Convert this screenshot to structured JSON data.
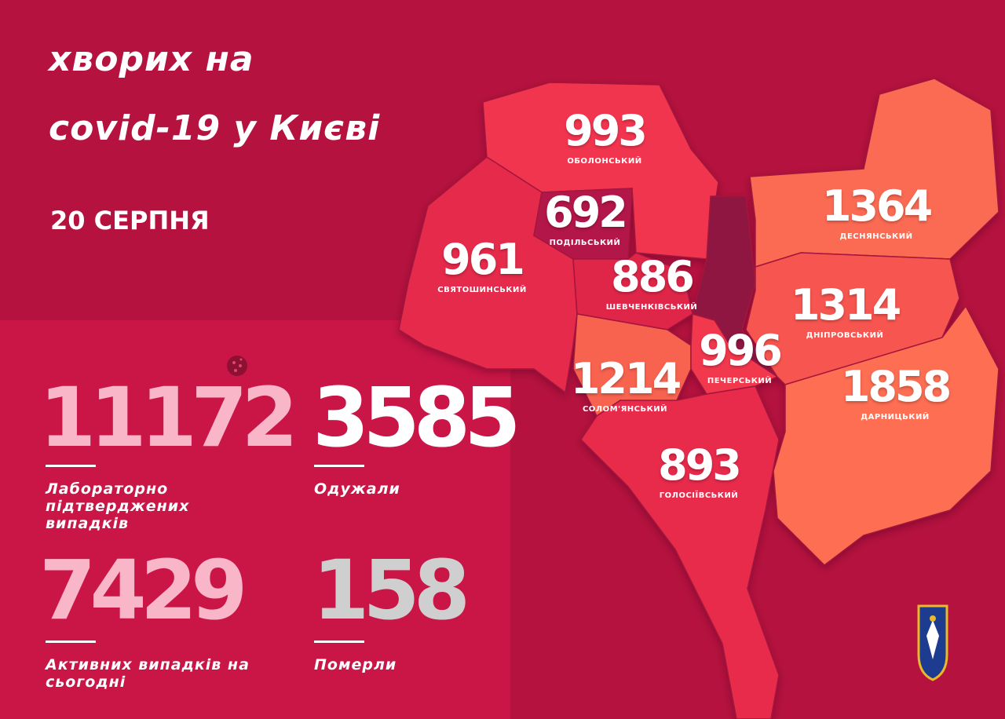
{
  "header": {
    "title_line1": "хворих на",
    "title_line2": "covid-19 у Києві",
    "date": "20 СЕРПНЯ"
  },
  "stats": [
    {
      "value": "11172",
      "label": "Лабораторно підтверджених випадків",
      "color": "#f9b6c9"
    },
    {
      "value": "3585",
      "label": "Одужали",
      "color": "#ffffff"
    },
    {
      "value": "7429",
      "label": "Активних випадків на сьогодні",
      "color": "#f9b6c9"
    },
    {
      "value": "158",
      "label": "Померли",
      "color": "#cfcfcf"
    }
  ],
  "districts": [
    {
      "name": "ОБОЛОНСЬКИЙ",
      "value": "993",
      "color": "#f2364f"
    },
    {
      "name": "ПОДІЛЬСЬКИЙ",
      "value": "692",
      "color": "#b3174a"
    },
    {
      "name": "СВЯТОШИНСЬКИЙ",
      "value": "961",
      "color": "#e62b4c"
    },
    {
      "name": "ШЕВЧЕНКІВСЬКИЙ",
      "value": "886",
      "color": "#df2548"
    },
    {
      "name": "ДЕСНЯНСЬКИЙ",
      "value": "1364",
      "color": "#fb6a52"
    },
    {
      "name": "ДНІПРОВСЬКИЙ",
      "value": "1314",
      "color": "#f75450"
    },
    {
      "name": "СОЛОМ'ЯНСЬКИЙ",
      "value": "1214",
      "color": "#f7634f"
    },
    {
      "name": "ПЕЧЕРСЬКИЙ",
      "value": "996",
      "color": "#f2384e"
    },
    {
      "name": "ДАРНИЦЬКИЙ",
      "value": "1858",
      "color": "#fd6e52"
    },
    {
      "name": "ГОЛОСІЇВСЬКИЙ",
      "value": "893",
      "color": "#e8294b"
    }
  ],
  "colors": {
    "background": "#b5123f",
    "panel": "#c91646",
    "river": "#8e1640"
  }
}
